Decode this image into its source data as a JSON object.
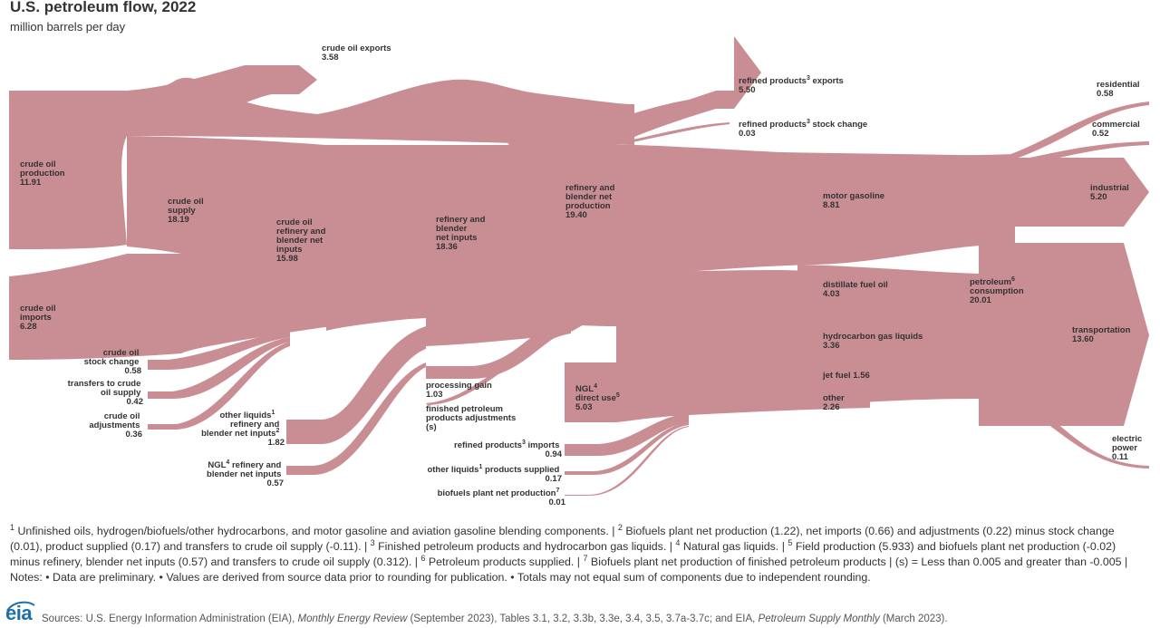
{
  "title": "U.S. petroleum flow, 2022",
  "subtitle": "million barrels per day",
  "colors": {
    "flow": "#c98d94",
    "text": "#333333",
    "logo": "#1f6fa8"
  },
  "nodes": {
    "crude_oil_production": {
      "name": "crude oil production",
      "value": "11.91"
    },
    "crude_oil_imports": {
      "name": "crude oil imports",
      "value": "6.28"
    },
    "crude_oil_stock_change": {
      "name": "crude oil stock change",
      "value": "0.58"
    },
    "transfers_to_crude": {
      "name": "transfers to crude oil supply",
      "value": "0.42"
    },
    "crude_oil_adjustments": {
      "name": "crude oil adjustments",
      "value": "0.36"
    },
    "crude_oil_exports": {
      "name": "crude oil exports",
      "value": "3.58"
    },
    "crude_oil_supply": {
      "name": "crude oil supply",
      "value": "18.19"
    },
    "crude_refinery_inputs": {
      "name": "crude oil refinery and blender net inputs",
      "value": "15.98"
    },
    "other_liquids_inputs": {
      "name": "other liquids",
      "sup": "1",
      "name2": "refinery and blender net inputs",
      "sup2": "2",
      "value": "1.82"
    },
    "ngl_inputs": {
      "name": "NGL",
      "sup": "4",
      "name2": "refinery and blender net inputs",
      "value": "0.57"
    },
    "refinery_net_inputs": {
      "name": "refinery and blender net inputs",
      "value": "18.36"
    },
    "processing_gain": {
      "name": "processing gain",
      "value": "1.03"
    },
    "finished_adjustments": {
      "name": "finished petroleum products adjustments",
      "value": "(s)"
    },
    "refinery_net_production": {
      "name": "refinery and blender net production",
      "value": "19.40"
    },
    "refined_exports": {
      "name": "refined products",
      "sup": "3",
      "name2": "exports",
      "value": "5.50"
    },
    "refined_stock_change": {
      "name": "refined products",
      "sup": "3",
      "name2": "stock change",
      "value": "0.03"
    },
    "ngl_direct_use": {
      "name": "NGL",
      "sup": "4",
      "name2": "direct use",
      "sup2": "5",
      "value": "5.03"
    },
    "refined_imports": {
      "name": "refined products",
      "sup": "3",
      "name2": "imports",
      "value": "0.94"
    },
    "other_liquids_supplied": {
      "name": "other liquids",
      "sup": "1",
      "name2": "products supplied",
      "value": "0.17"
    },
    "biofuels_plant": {
      "name": "biofuels plant net production",
      "sup": "7",
      "value": "0.01"
    },
    "motor_gasoline": {
      "name": "motor gasoline",
      "value": "8.81"
    },
    "distillate_fuel_oil": {
      "name": "distillate fuel oil",
      "value": "4.03"
    },
    "hydrocarbon_gas_liquids": {
      "name": "hydrocarbon gas liquids",
      "value": "3.36"
    },
    "jet_fuel": {
      "name": "jet fuel",
      "value": "1.56"
    },
    "other": {
      "name": "other",
      "value": "2.26"
    },
    "petroleum_consumption": {
      "name": "petroleum",
      "sup": "6",
      "name2": "consumption",
      "value": "20.01"
    },
    "residential": {
      "name": "residential",
      "value": "0.58"
    },
    "commercial": {
      "name": "commercial",
      "value": "0.52"
    },
    "industrial": {
      "name": "industrial",
      "value": "5.20"
    },
    "transportation": {
      "name": "transportation",
      "value": "13.60"
    },
    "electric_power": {
      "name": "electric power",
      "value": "0.11"
    }
  },
  "footnotes": [
    {
      "num": "1",
      "text": " Unfinished oils, hydrogen/biofuels/other hydrocarbons, and motor gasoline and aviation gasoline blending components. | "
    },
    {
      "num": "2",
      "text": " Biofuels plant net production (1.22), net imports (0.66) and adjustments (0.22) minus stock change (0.01), product supplied (0.17) and transfers to crude oil supply (-0.11). | "
    },
    {
      "num": "3",
      "text": " Finished petroleum products and hydrocarbon gas liquids. | "
    },
    {
      "num": "4",
      "text": " Natural gas liquids. | "
    },
    {
      "num": "5",
      "text": " Field production (5.933) and biofuels plant net production (-0.02) minus refinery, blender net inputs (0.57) and transfers to crude oil supply (0.312). | "
    },
    {
      "num": "6",
      "text": " Petroleum products supplied. | "
    },
    {
      "num": "7",
      "text": " Biofuels plant net production of finished petroleum products | (s) = Less than 0.005 and greater than -0.005 | Notes: • Data are preliminary. • Values are derived from source data prior to rounding for publication. • Totals may not equal sum of components due to independent rounding."
    }
  ],
  "logo": "eia",
  "sources": {
    "prefix": "Sources: U.S. Energy Information Administration (EIA), ",
    "pub1": "Monthly Energy Review",
    "mid": " (September 2023), Tables 3.1, 3.2, 3.3b, 3.3e, 3.4, 3.5, 3.7a-3.7c; and EIA, ",
    "pub2": "Petroleum Supply Monthly",
    "suffix": " (March 2023)."
  }
}
